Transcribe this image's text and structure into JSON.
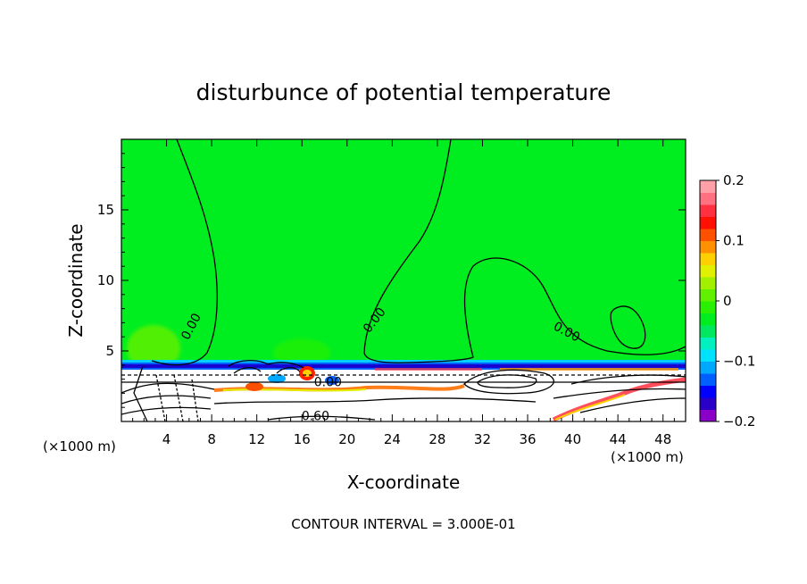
{
  "chart_data": {
    "type": "heatmap",
    "title": "disturbunce of potential temperature",
    "xlabel": "X-coordinate",
    "ylabel": "Z-coordinate",
    "x_unit": "(×1000 m)",
    "y_unit": "(×1000 m)",
    "xlim": [
      0,
      50
    ],
    "ylim": [
      0,
      20
    ],
    "x_ticks": [
      4,
      8,
      12,
      16,
      20,
      24,
      28,
      32,
      36,
      40,
      44,
      48
    ],
    "y_ticks": [
      5,
      10,
      15
    ],
    "colorbar": {
      "min": -0.2,
      "max": 0.2,
      "ticks": [
        {
          "value": 0.2,
          "label": "0.2"
        },
        {
          "value": 0.1,
          "label": "0.1"
        },
        {
          "value": 0,
          "label": "0"
        },
        {
          "value": -0.1,
          "label": "−0.1"
        },
        {
          "value": -0.2,
          "label": "−0.2"
        }
      ],
      "colors": [
        "#8b00c8",
        "#2a00c8",
        "#0000ff",
        "#0060ff",
        "#00a8ff",
        "#00e0ff",
        "#00f0c0",
        "#00e860",
        "#00ee20",
        "#28f000",
        "#60f000",
        "#a0f000",
        "#e0f000",
        "#ffd000",
        "#ff9000",
        "#ff5000",
        "#ff1000",
        "#ff3040",
        "#ff7080",
        "#ffa0a8"
      ]
    },
    "background_value": 0,
    "contour_interval": "3.000E-01",
    "contour_labels": [
      {
        "x": 6.5,
        "z": 6.6,
        "text": "0.00",
        "rot": -62
      },
      {
        "x": 22.7,
        "z": 7.0,
        "text": "0.00",
        "rot": -52
      },
      {
        "x": 39.3,
        "z": 6.1,
        "text": "0.00",
        "rot": 28
      },
      {
        "x": 18.3,
        "z": 2.5,
        "text": "0.00",
        "rot": 0
      },
      {
        "x": 17.2,
        "z": 0.1,
        "text": "0.60",
        "rot": 0
      }
    ]
  },
  "footer": {
    "contour_interval_text": "CONTOUR INTERVAL = 3.000E-01"
  }
}
